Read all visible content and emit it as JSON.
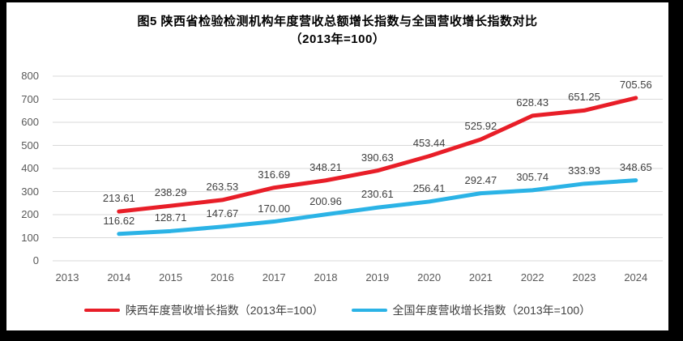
{
  "title": {
    "line1": "图5  陕西省检验检测机构年度营收总额增长指数与全国营收增长指数对比",
    "line2": "（2013年=100）"
  },
  "chart_data": {
    "type": "line",
    "categories": [
      "2013",
      "2014",
      "2015",
      "2016",
      "2017",
      "2018",
      "2019",
      "2020",
      "2021",
      "2022",
      "2023",
      "2024"
    ],
    "series": [
      {
        "name": "陕西年度营收增长指数（2013年=100）",
        "color": "#e81e28",
        "start_category": "2014",
        "values": [
          213.61,
          238.29,
          263.53,
          316.69,
          348.21,
          390.63,
          453.44,
          525.92,
          628.43,
          651.25,
          705.56
        ]
      },
      {
        "name": "全国年度营收增长指数（2013年=100）",
        "color": "#2bb3e6",
        "start_category": "2014",
        "values": [
          116.62,
          128.71,
          147.67,
          170.0,
          200.96,
          230.61,
          256.41,
          292.47,
          305.74,
          333.93,
          348.65
        ]
      }
    ],
    "y_ticks": [
      0,
      100,
      200,
      300,
      400,
      500,
      600,
      700,
      800
    ],
    "ylim": [
      0,
      800
    ],
    "grid": "horizontal",
    "legend_position": "bottom",
    "data_labels": "above",
    "xlabel": "",
    "ylabel": ""
  },
  "colors": {
    "frame": "#000000",
    "background": "#ffffff",
    "gridline": "#d9d9d9",
    "axis_text": "#595959",
    "data_label_text": "#3f3f3f",
    "title_text": "#000000"
  }
}
